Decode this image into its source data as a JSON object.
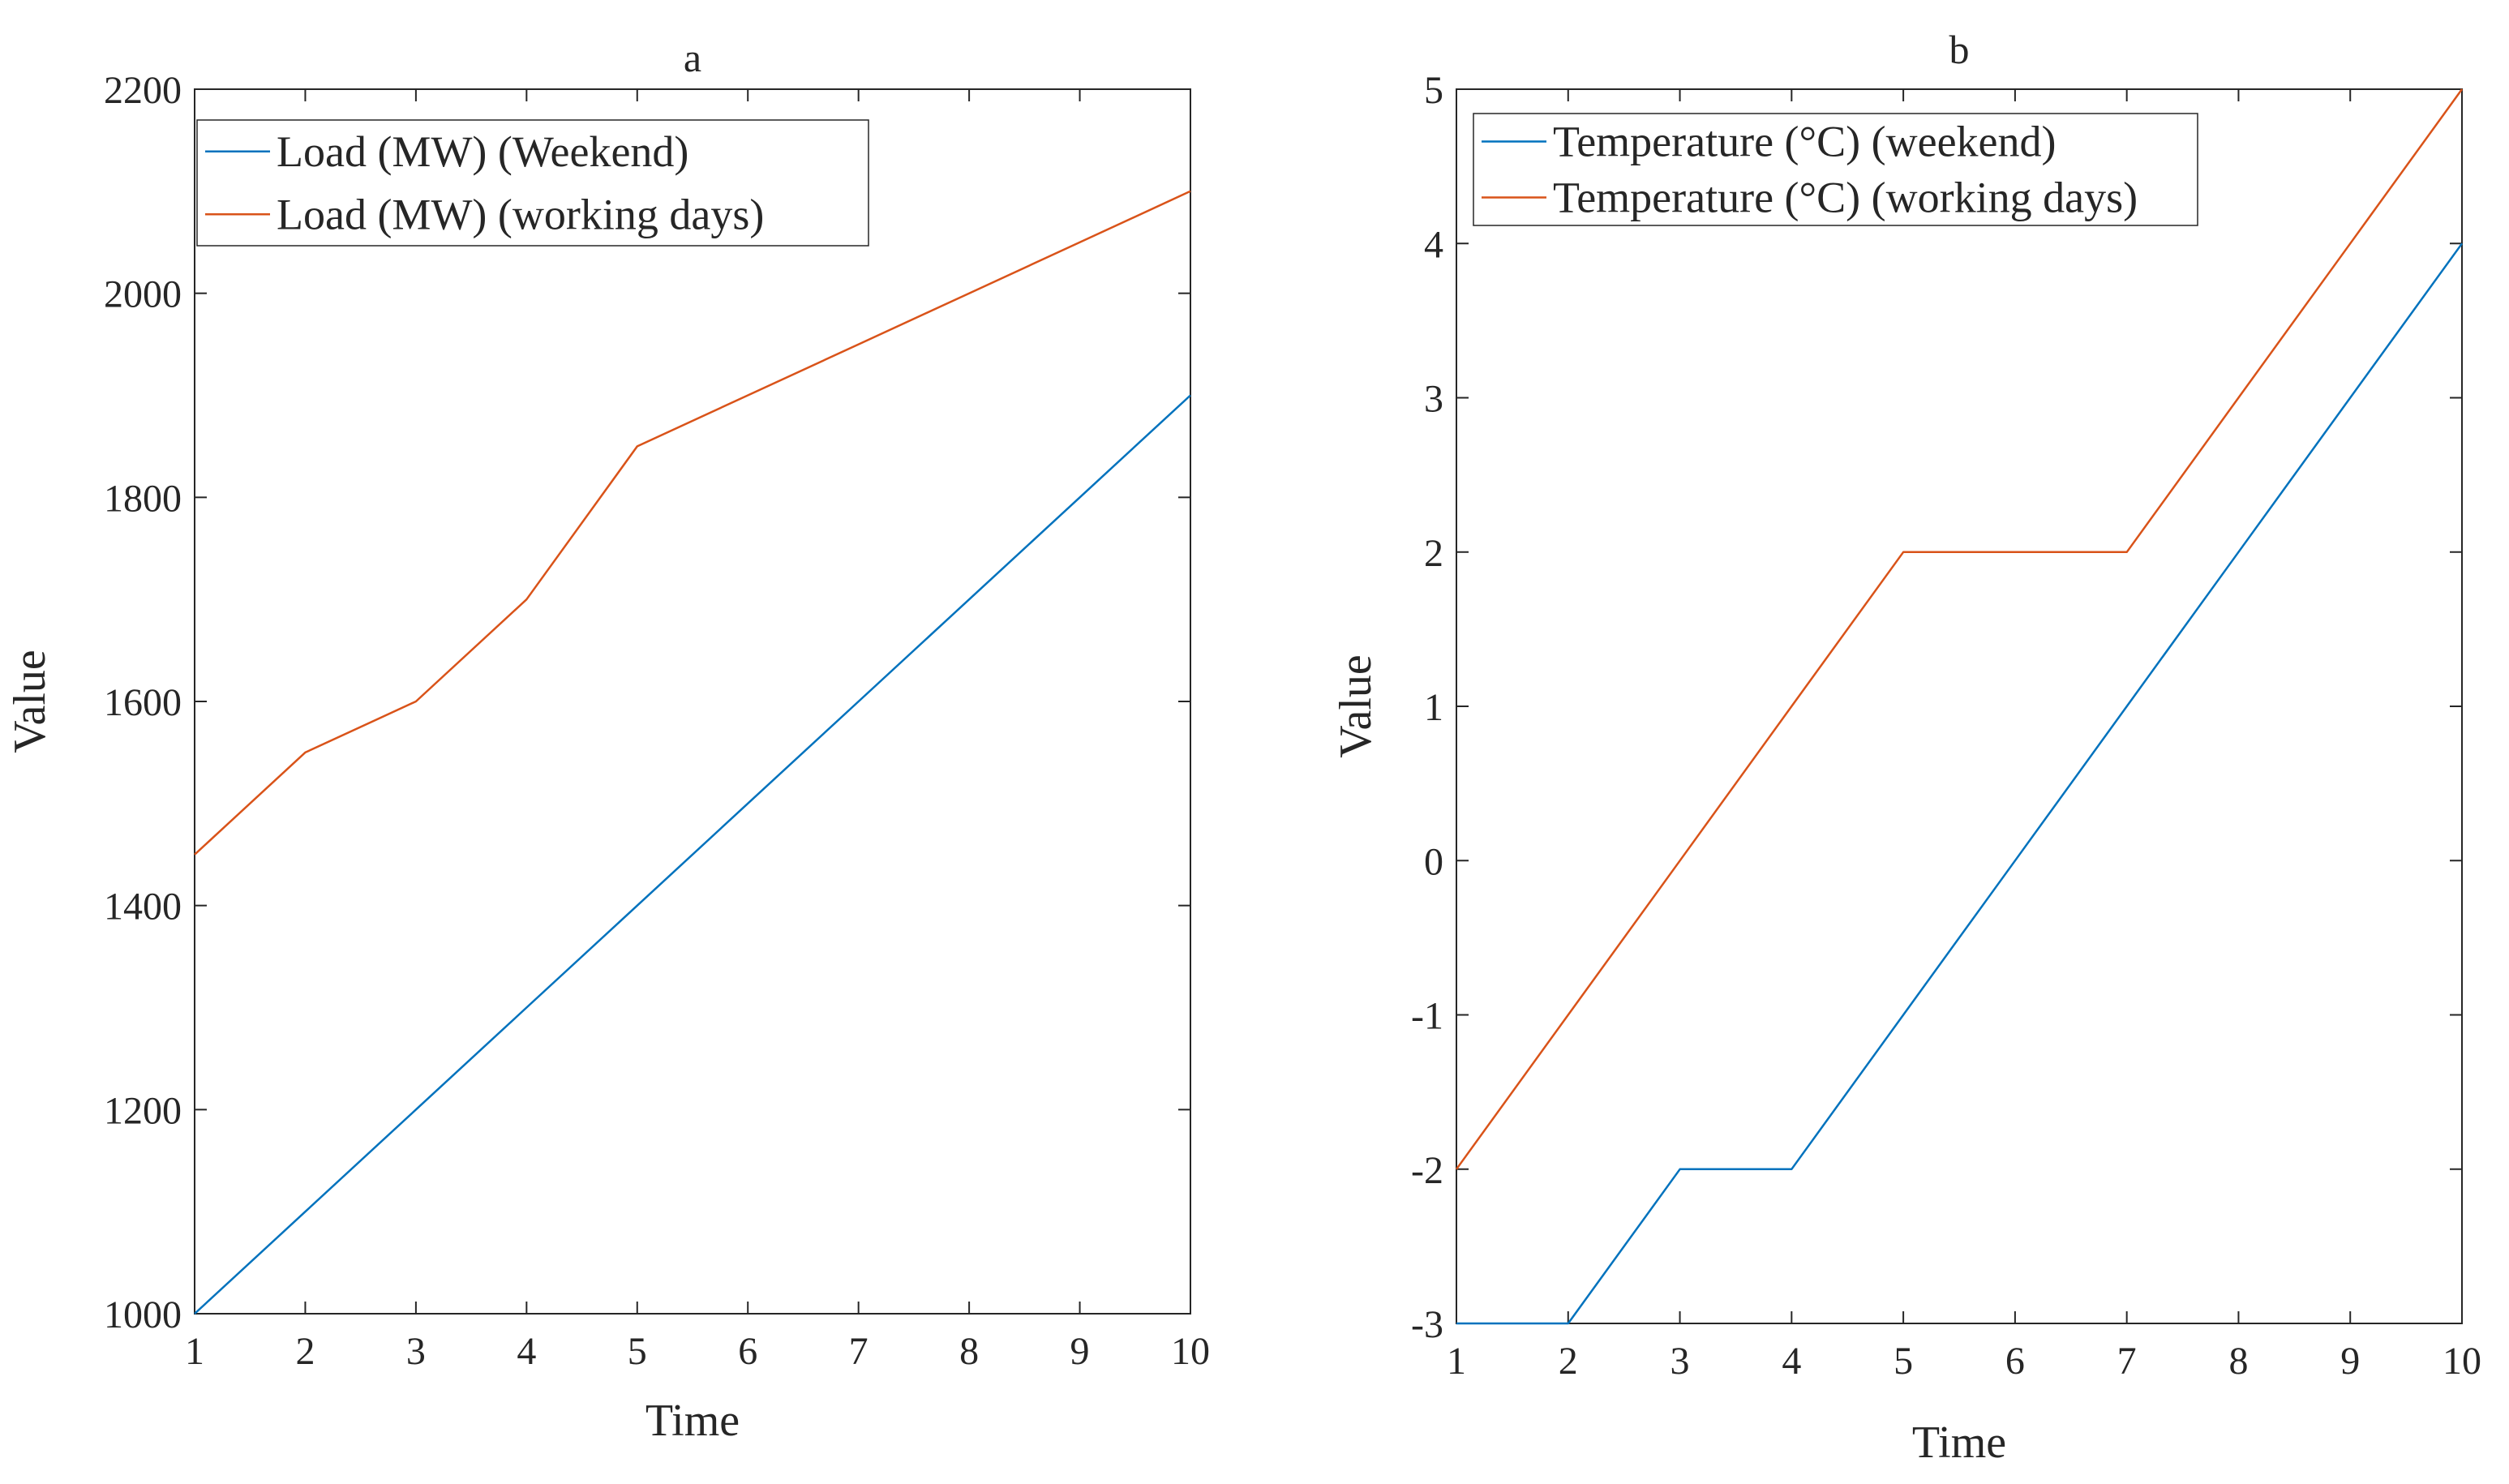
{
  "chart_data": [
    {
      "type": "line",
      "title": "a",
      "xlabel": "Time",
      "ylabel": "Value",
      "xlim": [
        1,
        10
      ],
      "ylim": [
        1000,
        2200
      ],
      "xticks": [
        1,
        2,
        3,
        4,
        5,
        6,
        7,
        8,
        9,
        10
      ],
      "yticks": [
        1000,
        1200,
        1400,
        1600,
        1800,
        2000,
        2200
      ],
      "grid": false,
      "legend_position": "top-left",
      "x": [
        1,
        2,
        3,
        4,
        5,
        6,
        7,
        8,
        9,
        10
      ],
      "series": [
        {
          "name": "Load (MW) (Weekend)",
          "color": "#0072BD",
          "values": [
            1000,
            1100,
            1200,
            1300,
            1400,
            1500,
            1600,
            1700,
            1800,
            1900
          ]
        },
        {
          "name": "Load (MW) (working days)",
          "color": "#D95319",
          "values": [
            1450,
            1550,
            1600,
            1700,
            1850,
            1900,
            1950,
            2000,
            2050,
            2100
          ]
        }
      ]
    },
    {
      "type": "line",
      "title": "b",
      "xlabel": "Time",
      "ylabel": "Value",
      "xlim": [
        1,
        10
      ],
      "ylim": [
        -3,
        5
      ],
      "xticks": [
        1,
        2,
        3,
        4,
        5,
        6,
        7,
        8,
        9,
        10
      ],
      "yticks": [
        -3,
        -2,
        -1,
        0,
        1,
        2,
        3,
        4,
        5
      ],
      "grid": false,
      "legend_position": "top-left",
      "x": [
        1,
        2,
        3,
        4,
        5,
        6,
        7,
        8,
        9,
        10
      ],
      "series": [
        {
          "name": "Temperature (°C) (weekend)",
          "color": "#0072BD",
          "values": [
            -3,
            -3,
            -2,
            -2,
            -1,
            0,
            1,
            2,
            3,
            4
          ]
        },
        {
          "name": "Temperature (°C) (working days)",
          "color": "#D95319",
          "values": [
            -2,
            -1,
            0,
            1,
            2,
            2,
            2,
            3,
            4,
            5
          ]
        }
      ]
    }
  ]
}
